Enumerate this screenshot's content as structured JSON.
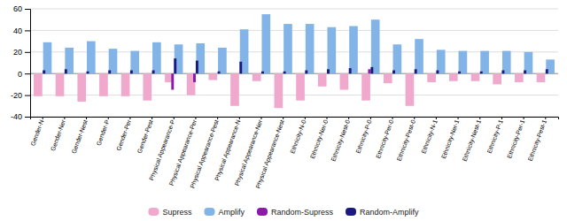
{
  "chart_data": {
    "type": "bar",
    "categories": [
      "Gender-N",
      "Gender-Ner",
      "Gender-Nest",
      "Gender-P",
      "Gender-Per",
      "Gender-Pest",
      "Physical Appearance-P",
      "Physical Appearance-Per",
      "Physical Appearance-Pest",
      "Physical Appearance-N",
      "Physical Appearance-Ner",
      "Physical Appearance-Nest",
      "Ethnicity-N-0",
      "Ethnicity-Ner-0",
      "Ethnicity-Nest-0",
      "Ethnicity-P-0",
      "Ethnicity-Per-0",
      "Ethnicity-Pest-0",
      "Ethnicity-N-1",
      "Ethnicity-Ner-1",
      "Ethnicity-Nest-1",
      "Ethnicity-P-1",
      "Ethnicity-Per-1",
      "Ethnicity-Pest-1"
    ],
    "series": [
      {
        "name": "Supress",
        "color": "#f0a8cc",
        "values": [
          -21,
          -21,
          -26,
          -21,
          -21,
          -25,
          -8,
          -20,
          -6,
          -30,
          -7,
          -32,
          -25,
          -12,
          -15,
          -25,
          -9,
          -30,
          -8,
          -7,
          -7,
          -10,
          -8,
          -8
        ]
      },
      {
        "name": "Amplify",
        "color": "#82b4e8",
        "values": [
          29,
          24,
          30,
          23,
          21,
          29,
          27,
          28,
          24,
          41,
          55,
          46,
          46,
          43,
          44,
          50,
          27,
          32,
          22,
          21,
          21,
          21,
          20,
          13
        ]
      },
      {
        "name": "Random-Supress",
        "color": "#8b1aaa",
        "values": [
          0,
          0,
          0,
          0,
          0,
          0,
          -15,
          -8,
          0,
          0,
          0,
          0,
          0,
          0,
          0,
          4,
          0,
          0,
          0,
          0,
          0,
          0,
          0,
          0
        ]
      },
      {
        "name": "Random-Amplify",
        "color": "#1a1a7e",
        "values": [
          3,
          4,
          2,
          3,
          3,
          3,
          14,
          12,
          2,
          11,
          2,
          2,
          3,
          4,
          5,
          6,
          3,
          4,
          3,
          2,
          2,
          3,
          3,
          4
        ]
      }
    ],
    "ylim": [
      -40,
      60
    ],
    "yticks": [
      -40,
      -20,
      0,
      20,
      40,
      60
    ],
    "grid": true,
    "legend": "bottom"
  }
}
